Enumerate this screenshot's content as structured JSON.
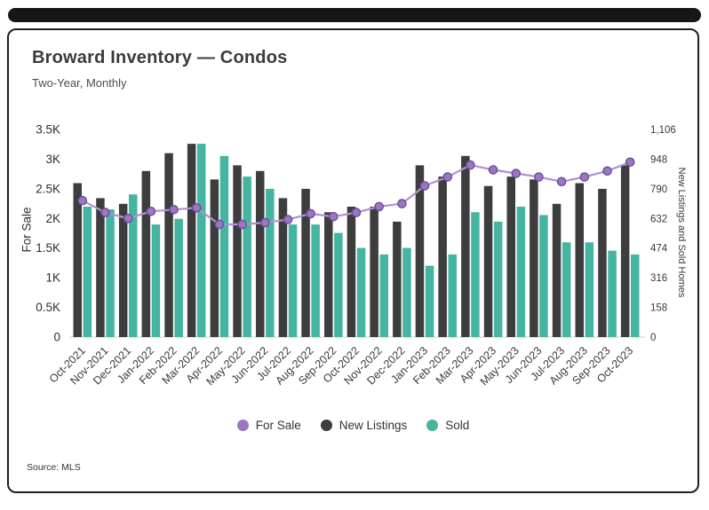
{
  "header": {
    "title": "Broward Inventory — Condos",
    "subtitle": "Two-Year, Monthly"
  },
  "chart_data": {
    "type": "combo-bar-line",
    "categories": [
      "Oct-2021",
      "Nov-2021",
      "Dec-2021",
      "Jan-2022",
      "Feb-2022",
      "Mar-2022",
      "Apr-2022",
      "May-2022",
      "Jun-2022",
      "Jul-2022",
      "Aug-2022",
      "Sep-2022",
      "Oct-2022",
      "Nov-2022",
      "Dec-2022",
      "Jan-2023",
      "Feb-2023",
      "Mar-2023",
      "Apr-2023",
      "May-2023",
      "Jun-2023",
      "Jul-2023",
      "Aug-2023",
      "Sep-2023",
      "Oct-2023"
    ],
    "series": [
      {
        "name": "For Sale",
        "type": "line",
        "axis": "left",
        "color": "#9b77c2",
        "line_color": "#ad94d0",
        "marker_stroke": "#6b4f96",
        "values": [
          2300,
          2100,
          2000,
          2120,
          2150,
          2180,
          1900,
          1900,
          1930,
          1980,
          2080,
          2030,
          2100,
          2200,
          2250,
          2550,
          2700,
          2900,
          2820,
          2760,
          2700,
          2620,
          2700,
          2800,
          2950
        ]
      },
      {
        "name": "New Listings",
        "type": "bar",
        "axis": "right",
        "color": "#3d3d3d",
        "values": [
          820,
          740,
          710,
          885,
          980,
          1030,
          840,
          915,
          885,
          740,
          790,
          665,
          695,
          695,
          615,
          915,
          855,
          965,
          805,
          855,
          840,
          710,
          820,
          790,
          915
        ]
      },
      {
        "name": "Sold",
        "type": "bar",
        "axis": "right",
        "color": "#45b4a0",
        "values": [
          695,
          680,
          760,
          600,
          630,
          1030,
          965,
          855,
          790,
          600,
          600,
          555,
          475,
          440,
          475,
          380,
          440,
          665,
          615,
          695,
          650,
          505,
          505,
          460,
          440
        ]
      }
    ],
    "left_axis": {
      "label": "For Sale",
      "max": 3500,
      "ticks": [
        "0",
        "0.5K",
        "1K",
        "1.5K",
        "2K",
        "2.5K",
        "3K",
        "3.5K"
      ]
    },
    "right_axis": {
      "label": "New Listings and Sold Homes",
      "max": 1106,
      "ticks": [
        "0",
        "158",
        "316",
        "474",
        "632",
        "790",
        "948",
        "1,106"
      ]
    },
    "legend_position": "bottom",
    "grid": false
  },
  "footer": {
    "source": "Source: MLS"
  }
}
